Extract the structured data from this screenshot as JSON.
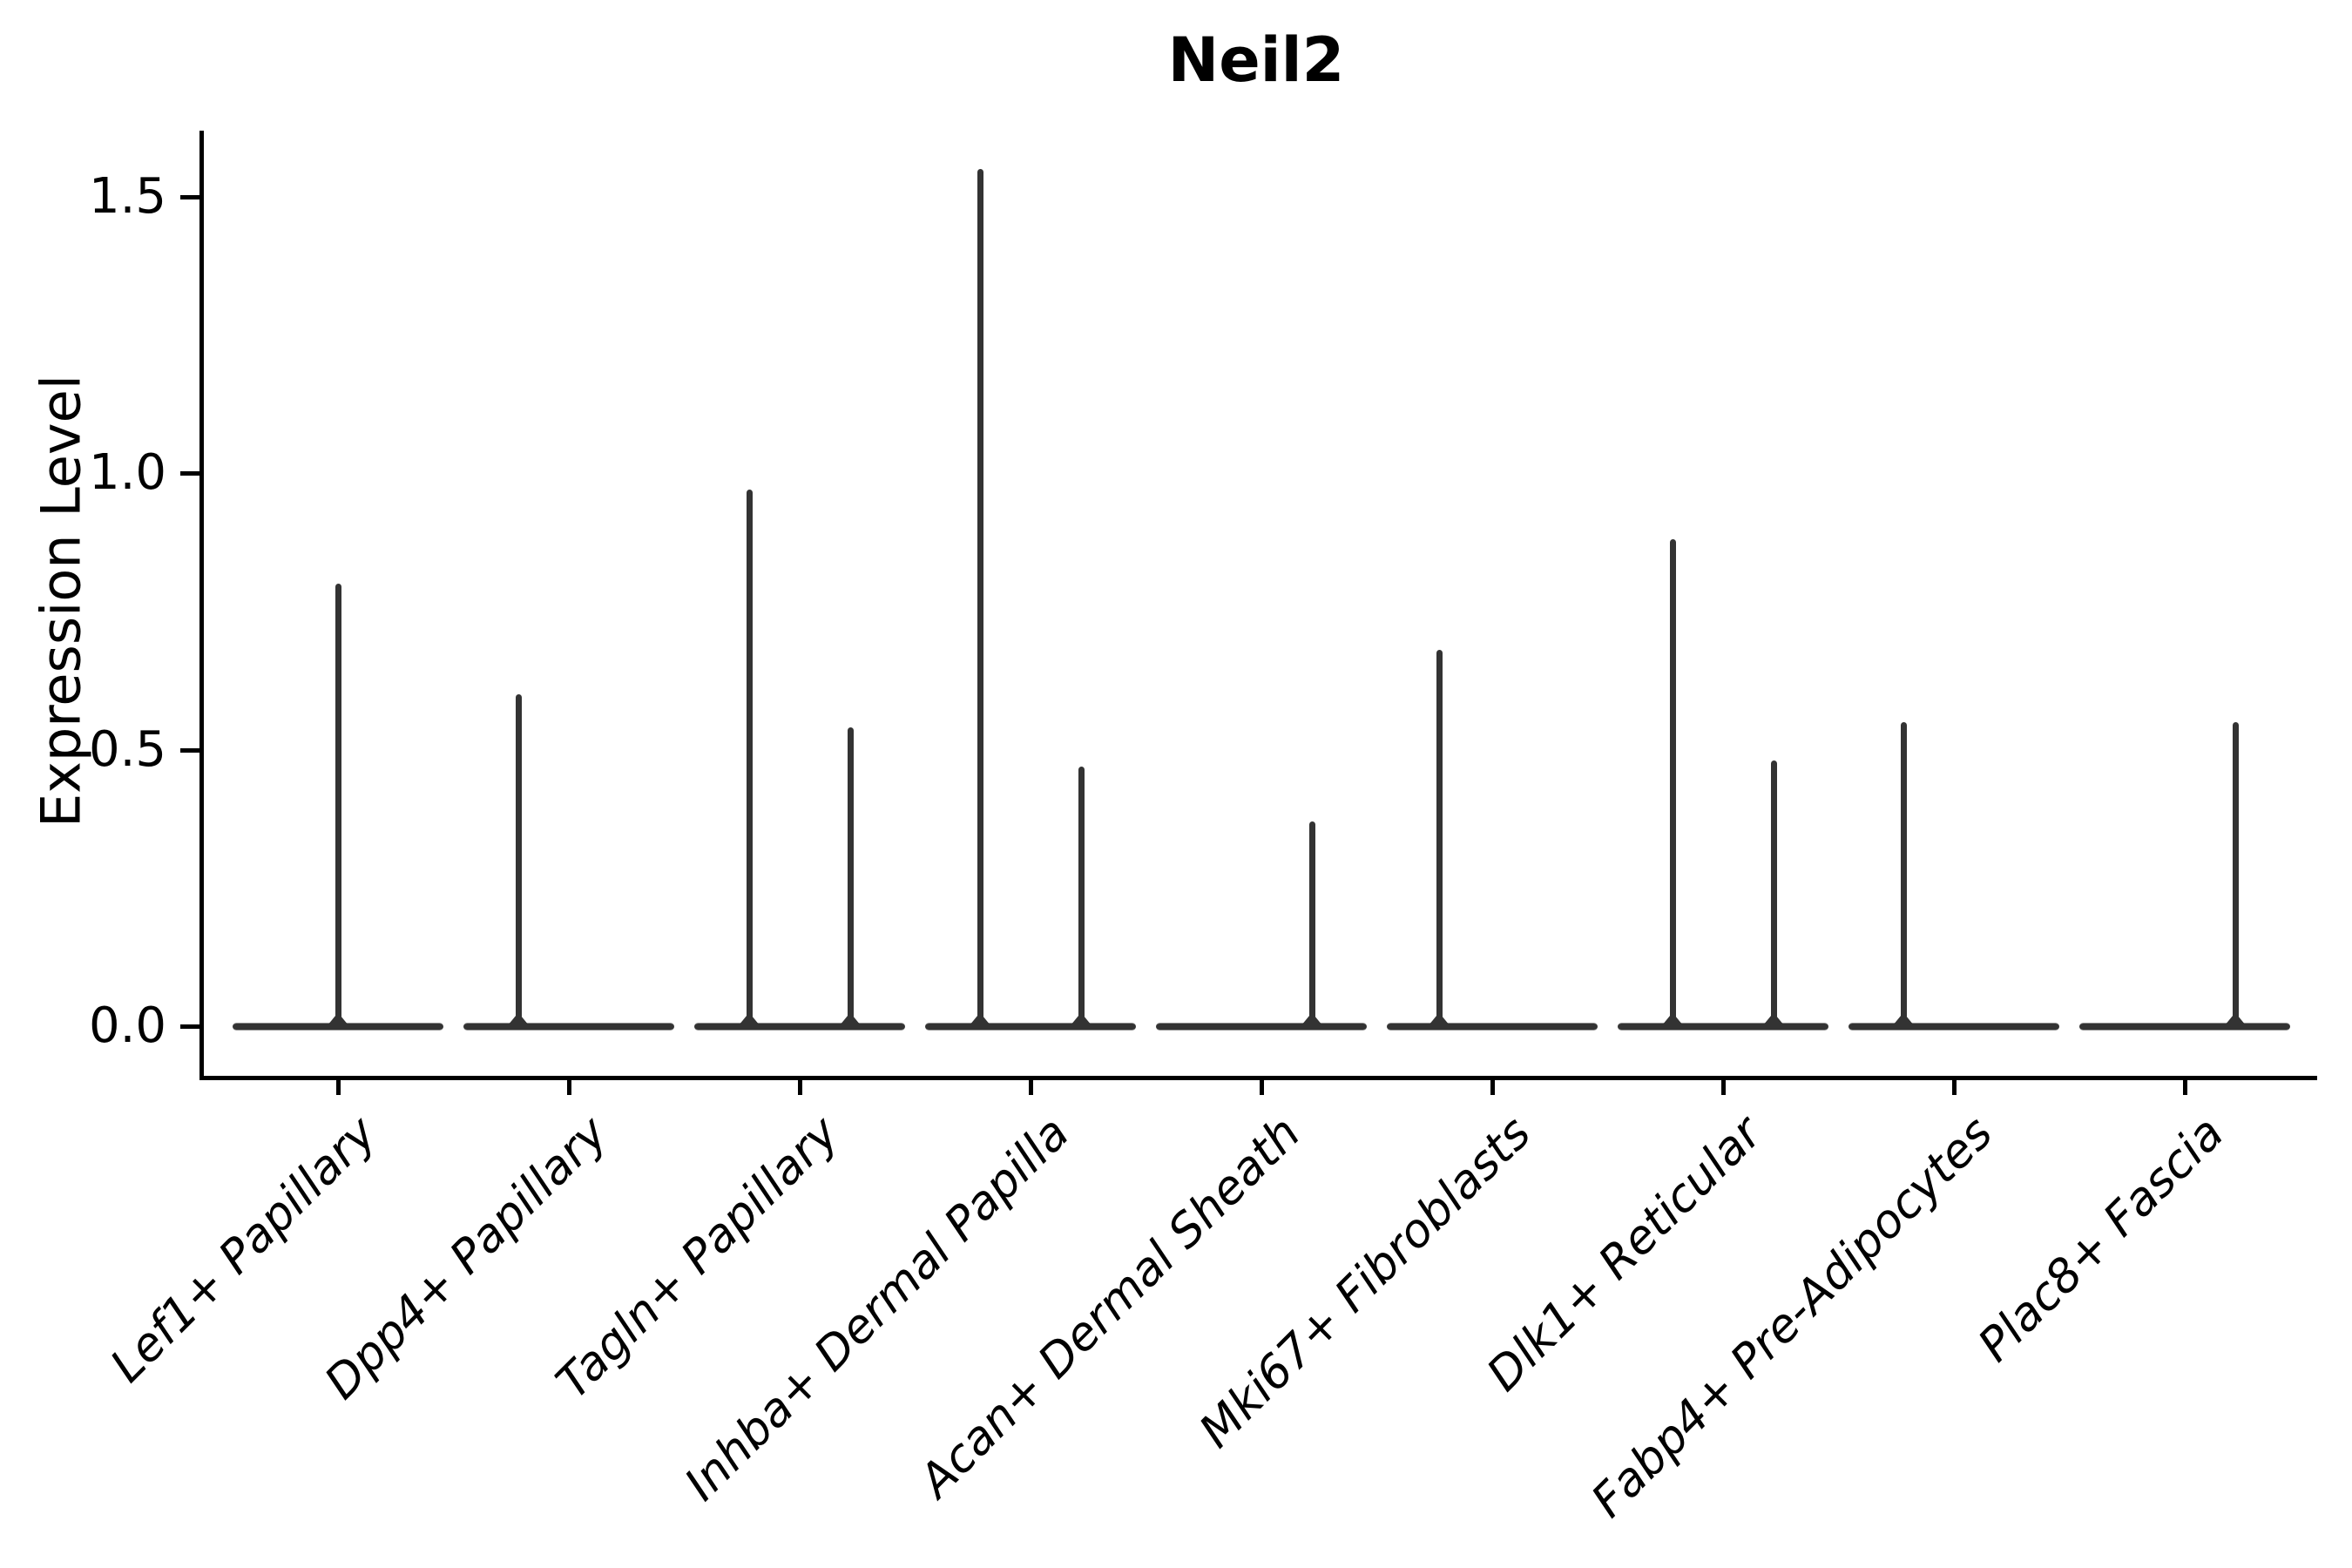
{
  "chart_data": {
    "type": "violin",
    "title": "Neil2",
    "xlabel": "",
    "ylabel": "Expression Level",
    "ylim": [
      0,
      1.62
    ],
    "grid": false,
    "legend": false,
    "x_tick_rotation": 45,
    "yticks": [
      {
        "value": 1.5,
        "label": "1.5"
      },
      {
        "value": 1.0,
        "label": "1.0"
      },
      {
        "value": 0.5,
        "label": "0.5"
      },
      {
        "value": 0.0,
        "label": "0.0"
      }
    ],
    "categories": [
      "Lef1+ Papillary",
      "Dpp4+ Papillary",
      "Tagln+ Papillary",
      "Inhba+ Dermal Papilla",
      "Acan+ Dermal Sheath",
      "Mki67+ Fibroblasts",
      "Dlk1+ Reticular",
      "Fabp4+ Pre-Adipocytes",
      "Plac8+ Fascia"
    ],
    "note": "Width-compressed violins: flat base at expression 0 spanning each category, with thin vertical spikes marking the maximum expression; offset is the spike position within the category in category-width units (negative = left sub-violin, positive = right sub-violin, 0 = centered).",
    "violins": [
      {
        "category": "Lef1+ Papillary",
        "spikes": [
          {
            "offset": 0.0,
            "max": 0.8
          }
        ]
      },
      {
        "category": "Dpp4+ Papillary",
        "spikes": [
          {
            "offset": -0.22,
            "max": 0.6
          }
        ]
      },
      {
        "category": "Tagln+ Papillary",
        "spikes": [
          {
            "offset": -0.22,
            "max": 0.97
          },
          {
            "offset": 0.22,
            "max": 0.54
          }
        ]
      },
      {
        "category": "Inhba+ Dermal Papilla",
        "spikes": [
          {
            "offset": -0.22,
            "max": 1.55
          },
          {
            "offset": 0.22,
            "max": 0.47
          }
        ]
      },
      {
        "category": "Acan+ Dermal Sheath",
        "spikes": [
          {
            "offset": 0.22,
            "max": 0.37
          }
        ]
      },
      {
        "category": "Mki67+ Fibroblasts",
        "spikes": [
          {
            "offset": -0.23,
            "max": 0.68
          }
        ]
      },
      {
        "category": "Dlk1+ Reticular",
        "spikes": [
          {
            "offset": -0.22,
            "max": 0.88
          },
          {
            "offset": 0.22,
            "max": 0.48
          }
        ]
      },
      {
        "category": "Fabp4+ Pre-Adipocytes",
        "spikes": [
          {
            "offset": -0.22,
            "max": 0.55
          }
        ]
      },
      {
        "category": "Plac8+ Fascia",
        "spikes": [
          {
            "offset": 0.22,
            "max": 0.55
          }
        ]
      }
    ],
    "colors": {
      "violin_line": "#333333",
      "axis": "#000000",
      "text": "#000000",
      "background": "#ffffff"
    }
  }
}
